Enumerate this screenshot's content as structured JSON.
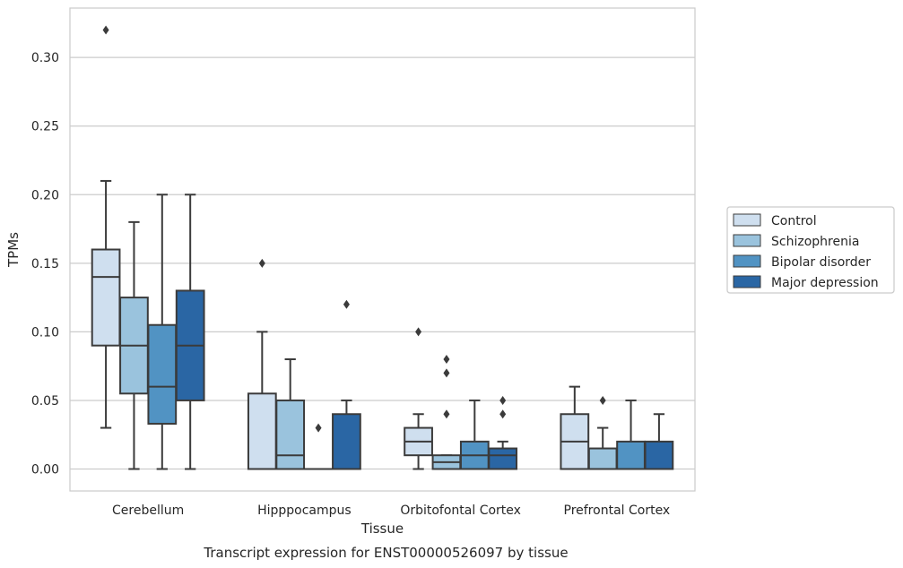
{
  "chart_data": {
    "type": "box",
    "title": "",
    "caption": "Transcript expression for ENST00000526097 by tissue",
    "xlabel": "Tissue",
    "ylabel": "TPMs",
    "ylim": [
      -0.016,
      0.336
    ],
    "yticks": [
      0.0,
      0.05,
      0.1,
      0.15,
      0.2,
      0.25,
      0.3
    ],
    "ytick_labels": [
      "0.00",
      "0.05",
      "0.10",
      "0.15",
      "0.20",
      "0.25",
      "0.30"
    ],
    "grid": "horizontal",
    "legend_position": "right",
    "categories": [
      "Cerebellum",
      "Hipppocampus",
      "Orbitofontal Cortex",
      "Prefrontal Cortex"
    ],
    "series": [
      {
        "name": "Control",
        "color": "#cfdfef",
        "boxes": [
          {
            "min": 0.03,
            "q1": 0.09,
            "median": 0.14,
            "q3": 0.16,
            "max": 0.21,
            "outliers": [
              0.32
            ]
          },
          {
            "min": 0.0,
            "q1": 0.0,
            "median": 0.0,
            "q3": 0.055,
            "max": 0.1,
            "outliers": [
              0.15
            ]
          },
          {
            "min": 0.0,
            "q1": 0.01,
            "median": 0.02,
            "q3": 0.03,
            "max": 0.04,
            "outliers": [
              0.1
            ]
          },
          {
            "min": 0.0,
            "q1": 0.0,
            "median": 0.02,
            "q3": 0.04,
            "max": 0.06,
            "outliers": []
          }
        ]
      },
      {
        "name": "Schizophrenia",
        "color": "#9ac3dd",
        "boxes": [
          {
            "min": 0.0,
            "q1": 0.055,
            "median": 0.09,
            "q3": 0.125,
            "max": 0.18,
            "outliers": []
          },
          {
            "min": 0.0,
            "q1": 0.0,
            "median": 0.01,
            "q3": 0.05,
            "max": 0.08,
            "outliers": []
          },
          {
            "min": 0.0,
            "q1": 0.0,
            "median": 0.005,
            "q3": 0.01,
            "max": 0.01,
            "outliers": [
              0.04,
              0.07,
              0.08
            ]
          },
          {
            "min": 0.0,
            "q1": 0.0,
            "median": 0.0,
            "q3": 0.015,
            "max": 0.03,
            "outliers": [
              0.05
            ]
          }
        ]
      },
      {
        "name": "Bipolar disorder",
        "color": "#5193c3",
        "boxes": [
          {
            "min": 0.0,
            "q1": 0.033,
            "median": 0.06,
            "q3": 0.105,
            "max": 0.2,
            "outliers": []
          },
          {
            "min": 0.0,
            "q1": 0.0,
            "median": 0.0,
            "q3": 0.0,
            "max": 0.0,
            "outliers": [
              0.03
            ]
          },
          {
            "min": 0.0,
            "q1": 0.0,
            "median": 0.01,
            "q3": 0.02,
            "max": 0.05,
            "outliers": []
          },
          {
            "min": 0.0,
            "q1": 0.0,
            "median": 0.0,
            "q3": 0.02,
            "max": 0.05,
            "outliers": []
          }
        ]
      },
      {
        "name": "Major depression",
        "color": "#2a66a4",
        "boxes": [
          {
            "min": 0.0,
            "q1": 0.05,
            "median": 0.09,
            "q3": 0.13,
            "max": 0.2,
            "outliers": []
          },
          {
            "min": 0.0,
            "q1": 0.0,
            "median": 0.0,
            "q3": 0.04,
            "max": 0.05,
            "outliers": [
              0.12
            ]
          },
          {
            "min": 0.0,
            "q1": 0.0,
            "median": 0.01,
            "q3": 0.015,
            "max": 0.02,
            "outliers": [
              0.04,
              0.05
            ]
          },
          {
            "min": 0.0,
            "q1": 0.0,
            "median": 0.0,
            "q3": 0.02,
            "max": 0.04,
            "outliers": []
          }
        ]
      }
    ]
  }
}
